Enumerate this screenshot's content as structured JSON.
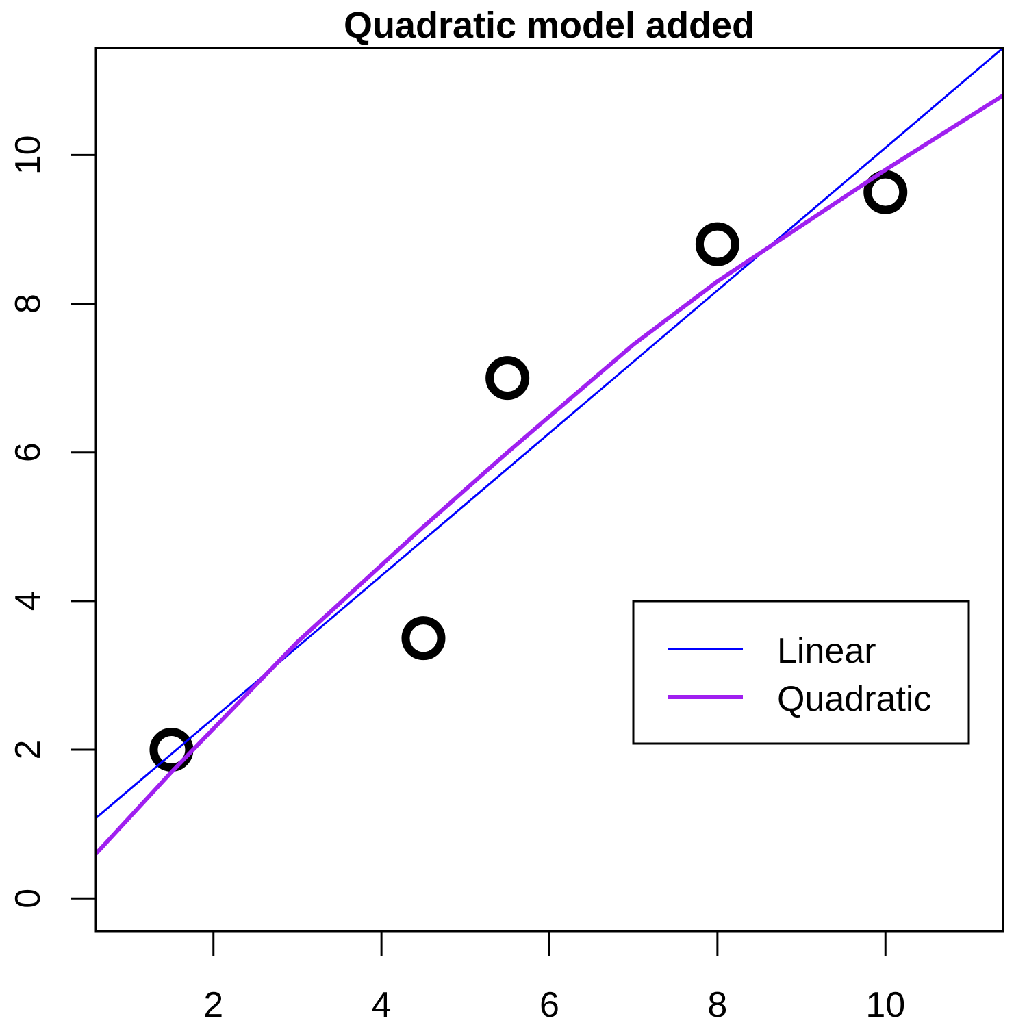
{
  "chart_data": {
    "type": "scatter",
    "title": "Quadratic model added",
    "xlabel": "",
    "ylabel": "",
    "xlim": [
      0.6,
      11.4
    ],
    "ylim": [
      -0.44,
      11.44
    ],
    "x_ticks": [
      2,
      4,
      6,
      8,
      10
    ],
    "y_ticks": [
      0,
      2,
      4,
      6,
      8,
      10
    ],
    "grid": false,
    "points": {
      "x": [
        1.5,
        4.5,
        5.5,
        8,
        10
      ],
      "y": [
        2,
        3.5,
        7,
        8.8,
        9.5
      ]
    },
    "series": [
      {
        "name": "Linear",
        "color": "#0000ff",
        "x": [
          0.6,
          11.4
        ],
        "y": [
          1.08,
          11.44
        ]
      },
      {
        "name": "Quadratic",
        "color": "#a020f0",
        "x": [
          0.6,
          1.5,
          3,
          4.5,
          5.5,
          7,
          8,
          9,
          10,
          11.4
        ],
        "y": [
          0.6,
          1.7,
          3.45,
          5.0,
          6.0,
          7.45,
          8.3,
          9.05,
          9.8,
          10.8
        ]
      }
    ],
    "legend": {
      "position": "right",
      "entries": [
        "Linear",
        "Quadratic"
      ]
    }
  }
}
